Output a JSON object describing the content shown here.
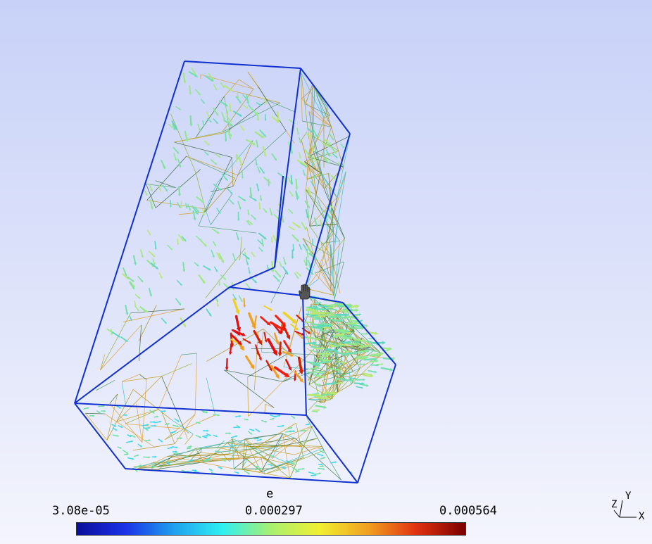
{
  "scalar_bar": {
    "title": "e",
    "min_label": "3.08e-05",
    "mid_label": "0.000297",
    "max_label": "0.000564",
    "colormap": [
      "#0b0d9a",
      "#1a32e6",
      "#1fa0f0",
      "#2ff0f0",
      "#a8f070",
      "#f0f030",
      "#f0a020",
      "#e03010",
      "#7a0000"
    ]
  },
  "axes": {
    "y": "Y",
    "z": "Z",
    "x": "X"
  },
  "colors": {
    "edge": "#1030d0",
    "low": "#40e0e0",
    "mid": "#e0c030",
    "high": "#e01010"
  },
  "icons": {
    "cursor": "hand-cursor-icon"
  }
}
